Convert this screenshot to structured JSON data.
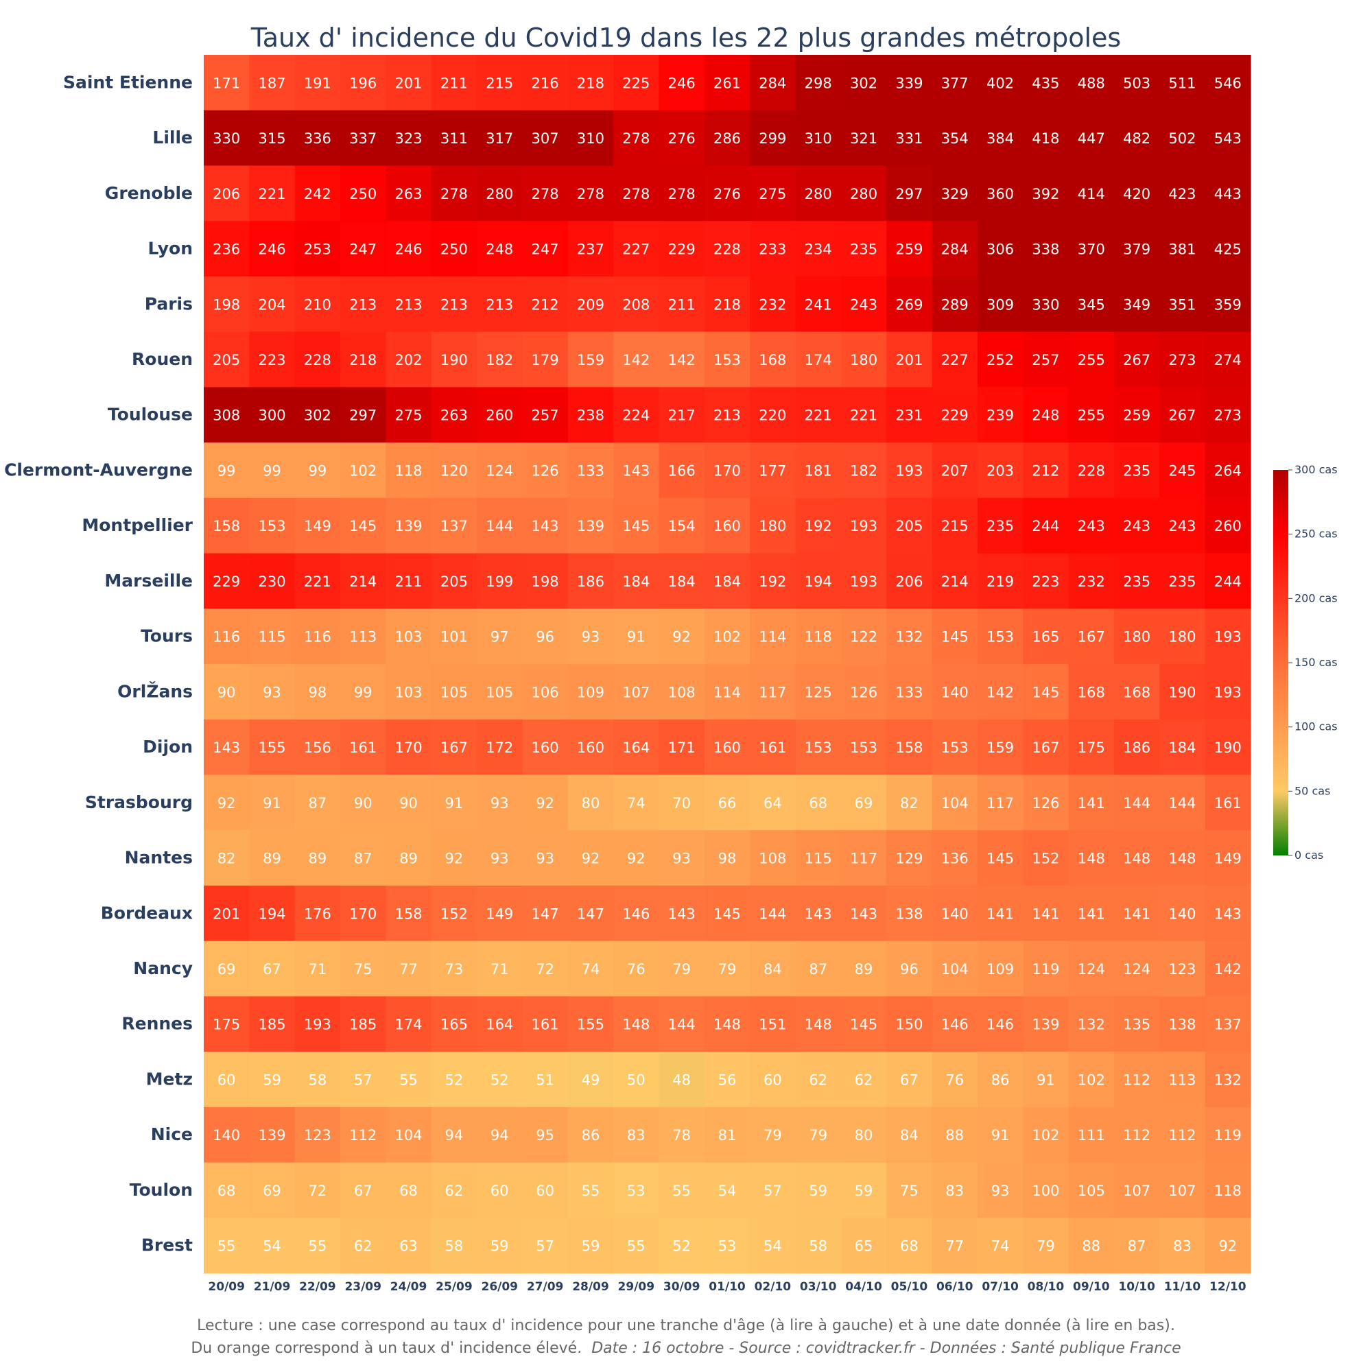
{
  "chart_data": {
    "type": "heatmap",
    "title": "Taux d' incidence du Covid19 dans les 22 plus grandes métropoles",
    "rows": [
      "Saint Etienne",
      "Lille",
      "Grenoble",
      "Lyon",
      "Paris",
      "Rouen",
      "Toulouse",
      "Clermont-Auvergne",
      "Montpellier",
      "Marseille",
      "Tours",
      "OrlŽans",
      "Dijon",
      "Strasbourg",
      "Nantes",
      "Bordeaux",
      "Nancy",
      "Rennes",
      "Metz",
      "Nice",
      "Toulon",
      "Brest"
    ],
    "columns": [
      "20/09",
      "21/09",
      "22/09",
      "23/09",
      "24/09",
      "25/09",
      "26/09",
      "27/09",
      "28/09",
      "29/09",
      "30/09",
      "01/10",
      "02/10",
      "03/10",
      "04/10",
      "05/10",
      "06/10",
      "07/10",
      "08/10",
      "09/10",
      "10/10",
      "11/10",
      "12/10"
    ],
    "values": [
      [
        171,
        187,
        191,
        196,
        201,
        211,
        215,
        216,
        218,
        225,
        246,
        261,
        284,
        298,
        302,
        339,
        377,
        402,
        435,
        488,
        503,
        511,
        546
      ],
      [
        330,
        315,
        336,
        337,
        323,
        311,
        317,
        307,
        310,
        278,
        276,
        286,
        299,
        310,
        321,
        331,
        354,
        384,
        418,
        447,
        482,
        502,
        543
      ],
      [
        206,
        221,
        242,
        250,
        263,
        278,
        280,
        278,
        278,
        278,
        278,
        276,
        275,
        280,
        280,
        297,
        329,
        360,
        392,
        414,
        420,
        423,
        443
      ],
      [
        236,
        246,
        253,
        247,
        246,
        250,
        248,
        247,
        237,
        227,
        229,
        228,
        233,
        234,
        235,
        259,
        284,
        306,
        338,
        370,
        379,
        381,
        425
      ],
      [
        198,
        204,
        210,
        213,
        213,
        213,
        213,
        212,
        209,
        208,
        211,
        218,
        232,
        241,
        243,
        269,
        289,
        309,
        330,
        345,
        349,
        351,
        359
      ],
      [
        205,
        223,
        228,
        218,
        202,
        190,
        182,
        179,
        159,
        142,
        142,
        153,
        168,
        174,
        180,
        201,
        227,
        252,
        257,
        255,
        267,
        273,
        274
      ],
      [
        308,
        300,
        302,
        297,
        275,
        263,
        260,
        257,
        238,
        224,
        217,
        213,
        220,
        221,
        221,
        231,
        229,
        239,
        248,
        255,
        259,
        267,
        273
      ],
      [
        99,
        99,
        99,
        102,
        118,
        120,
        124,
        126,
        133,
        143,
        166,
        170,
        177,
        181,
        182,
        193,
        207,
        203,
        212,
        228,
        235,
        245,
        264
      ],
      [
        158,
        153,
        149,
        145,
        139,
        137,
        144,
        143,
        139,
        145,
        154,
        160,
        180,
        192,
        193,
        205,
        215,
        235,
        244,
        243,
        243,
        243,
        260
      ],
      [
        229,
        230,
        221,
        214,
        211,
        205,
        199,
        198,
        186,
        184,
        184,
        184,
        192,
        194,
        193,
        206,
        214,
        219,
        223,
        232,
        235,
        235,
        244
      ],
      [
        116,
        115,
        116,
        113,
        103,
        101,
        97,
        96,
        93,
        91,
        92,
        102,
        114,
        118,
        122,
        132,
        145,
        153,
        165,
        167,
        180,
        180,
        193
      ],
      [
        90,
        93,
        98,
        99,
        103,
        105,
        105,
        106,
        109,
        107,
        108,
        114,
        117,
        125,
        126,
        133,
        140,
        142,
        145,
        168,
        168,
        190,
        193
      ],
      [
        143,
        155,
        156,
        161,
        170,
        167,
        172,
        160,
        160,
        164,
        171,
        160,
        161,
        153,
        153,
        158,
        153,
        159,
        167,
        175,
        186,
        184,
        190
      ],
      [
        92,
        91,
        87,
        90,
        90,
        91,
        93,
        92,
        80,
        74,
        70,
        66,
        64,
        68,
        69,
        82,
        104,
        117,
        126,
        141,
        144,
        144,
        161
      ],
      [
        82,
        89,
        89,
        87,
        89,
        92,
        93,
        93,
        92,
        92,
        93,
        98,
        108,
        115,
        117,
        129,
        136,
        145,
        152,
        148,
        148,
        148,
        149
      ],
      [
        201,
        194,
        176,
        170,
        158,
        152,
        149,
        147,
        147,
        146,
        143,
        145,
        144,
        143,
        143,
        138,
        140,
        141,
        141,
        141,
        141,
        140,
        143
      ],
      [
        69,
        67,
        71,
        75,
        77,
        73,
        71,
        72,
        74,
        76,
        79,
        79,
        84,
        87,
        89,
        96,
        104,
        109,
        119,
        124,
        124,
        123,
        142
      ],
      [
        175,
        185,
        193,
        185,
        174,
        165,
        164,
        161,
        155,
        148,
        144,
        148,
        151,
        148,
        145,
        150,
        146,
        146,
        139,
        132,
        135,
        138,
        137
      ],
      [
        60,
        59,
        58,
        57,
        55,
        52,
        52,
        51,
        49,
        50,
        48,
        56,
        60,
        62,
        62,
        67,
        76,
        86,
        91,
        102,
        112,
        113,
        132
      ],
      [
        140,
        139,
        123,
        112,
        104,
        94,
        94,
        95,
        86,
        83,
        78,
        81,
        79,
        79,
        80,
        84,
        88,
        91,
        102,
        111,
        112,
        112,
        119
      ],
      [
        68,
        69,
        72,
        67,
        68,
        62,
        60,
        60,
        55,
        53,
        55,
        54,
        57,
        59,
        59,
        75,
        83,
        93,
        100,
        105,
        107,
        107,
        118
      ],
      [
        55,
        54,
        55,
        62,
        63,
        58,
        59,
        57,
        59,
        55,
        52,
        53,
        54,
        58,
        65,
        68,
        77,
        74,
        79,
        88,
        87,
        83,
        92
      ]
    ],
    "zrange": [
      0,
      300
    ],
    "colorscale": [
      [
        0,
        "#008000"
      ],
      [
        0.1667,
        "#ffc966"
      ],
      [
        0.5,
        "#ff6e39"
      ],
      [
        0.8333,
        "#ff0000"
      ],
      [
        1,
        "#b20000"
      ]
    ],
    "colorbar": {
      "ticks": [
        0,
        50,
        100,
        150,
        200,
        250,
        300
      ],
      "tick_labels": [
        "0 cas",
        "50 cas",
        "100 cas",
        "150 cas",
        "200 cas",
        "250 cas",
        "300 cas"
      ]
    }
  },
  "footer": {
    "line1": "Lecture : une case correspond au taux d' incidence pour une tranche d'âge (à lire à gauche) et à une date donnée (à lire en bas).",
    "line2_plain": "Du orange correspond à un taux d' incidence élevé.",
    "line2_italic": "Date : 16 octobre - Source : covidtracker.fr - Données : Santé publique France"
  }
}
